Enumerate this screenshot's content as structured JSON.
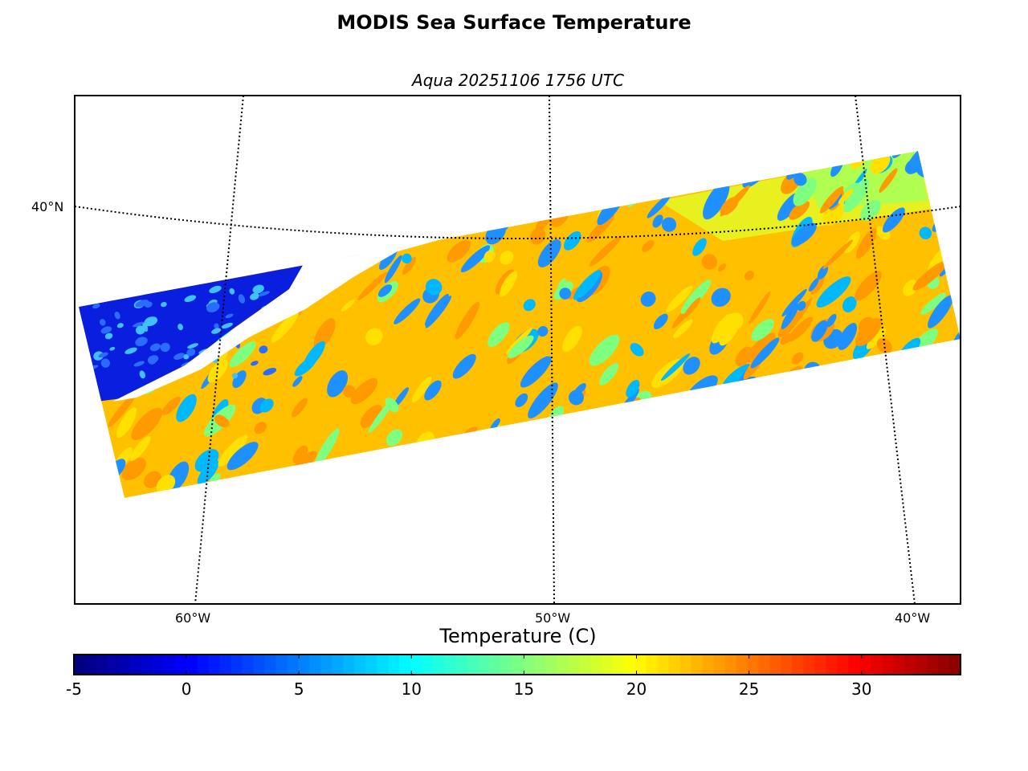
{
  "title": "MODIS Sea Surface Temperature",
  "subtitle": "Aqua 20251106 1756 UTC",
  "map": {
    "lat_labels": [
      "40°N"
    ],
    "lon_labels": [
      "60°W",
      "50°W",
      "40°W"
    ]
  },
  "chart_data": {
    "type": "heatmap",
    "title": "MODIS Sea Surface Temperature",
    "subtitle": "Aqua 20251106 1756 UTC",
    "colorbar": {
      "label": "Temperature (C)",
      "range": [
        -5,
        34.4
      ],
      "ticks": [
        -5,
        0,
        5,
        10,
        15,
        20,
        25,
        30
      ],
      "tick_labels": [
        "-5",
        "0",
        "5",
        "10",
        "15",
        "20",
        "25",
        "30"
      ],
      "colormap": "jet"
    },
    "graticule": {
      "parallels": [
        40
      ],
      "meridians": [
        -60,
        -50,
        -40
      ]
    }
  }
}
